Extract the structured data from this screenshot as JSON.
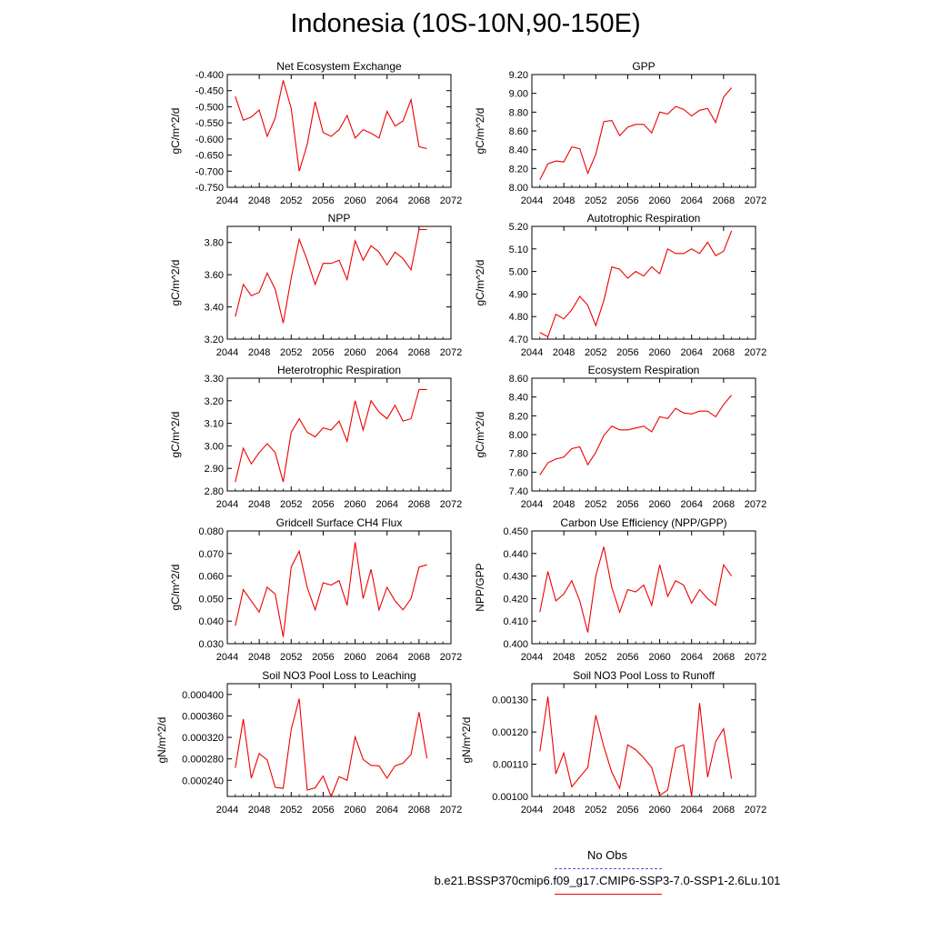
{
  "title": "Indonesia (10S-10N,90-150E)",
  "legend": {
    "obs_label": "No Obs",
    "obs_color": "#5555dd",
    "run_label": "b.e21.BSSP370cmip6.f09_g17.CMIP6-SSP3-7.0-SSP1-2.6Lu.101",
    "run_color": "#ee0000"
  },
  "chart_data": [
    {
      "type": "line",
      "title": "Net Ecosystem Exchange",
      "ylabel": "gC/m^2/d",
      "xlim": [
        2044,
        2072
      ],
      "ylim": [
        -0.75,
        -0.4
      ],
      "xticks": [
        "2044",
        "2048",
        "2052",
        "2056",
        "2060",
        "2064",
        "2068",
        "2072"
      ],
      "yticks": [
        "-0.750",
        "-0.700",
        "-0.650",
        "-0.600",
        "-0.550",
        "-0.500",
        "-0.450",
        "-0.400"
      ],
      "x": [
        2045,
        2046,
        2047,
        2048,
        2049,
        2050,
        2051,
        2052,
        2053,
        2054,
        2055,
        2056,
        2057,
        2058,
        2059,
        2060,
        2061,
        2062,
        2063,
        2064,
        2065,
        2066,
        2067,
        2068,
        2069
      ],
      "series": [
        {
          "values": [
            -0.468,
            -0.542,
            -0.532,
            -0.51,
            -0.592,
            -0.535,
            -0.418,
            -0.505,
            -0.7,
            -0.617,
            -0.484,
            -0.58,
            -0.592,
            -0.571,
            -0.527,
            -0.597,
            -0.571,
            -0.582,
            -0.597,
            -0.514,
            -0.56,
            -0.544,
            -0.478,
            -0.624,
            -0.63
          ]
        }
      ]
    },
    {
      "type": "line",
      "title": "GPP",
      "ylabel": "gC/m^2/d",
      "xlim": [
        2044,
        2072
      ],
      "ylim": [
        8.0,
        9.2
      ],
      "xticks": [
        "2044",
        "2048",
        "2052",
        "2056",
        "2060",
        "2064",
        "2068",
        "2072"
      ],
      "yticks": [
        "8.00",
        "8.20",
        "8.40",
        "8.60",
        "8.80",
        "9.00",
        "9.20"
      ],
      "x": [
        2045,
        2046,
        2047,
        2048,
        2049,
        2050,
        2051,
        2052,
        2053,
        2054,
        2055,
        2056,
        2057,
        2058,
        2059,
        2060,
        2061,
        2062,
        2063,
        2064,
        2065,
        2066,
        2067,
        2068,
        2069
      ],
      "series": [
        {
          "values": [
            8.08,
            8.25,
            8.28,
            8.27,
            8.43,
            8.41,
            8.15,
            8.35,
            8.7,
            8.71,
            8.55,
            8.64,
            8.67,
            8.67,
            8.58,
            8.8,
            8.78,
            8.86,
            8.83,
            8.76,
            8.82,
            8.84,
            8.69,
            8.96,
            9.06
          ]
        }
      ]
    },
    {
      "type": "line",
      "title": "NPP",
      "ylabel": "gC/m^2/d",
      "xlim": [
        2044,
        2072
      ],
      "ylim": [
        3.2,
        3.9
      ],
      "xticks": [
        "2044",
        "2048",
        "2052",
        "2056",
        "2060",
        "2064",
        "2068",
        "2072"
      ],
      "yticks": [
        "3.20",
        "3.40",
        "3.60",
        "3.80"
      ],
      "x": [
        2045,
        2046,
        2047,
        2048,
        2049,
        2050,
        2051,
        2052,
        2053,
        2054,
        2055,
        2056,
        2057,
        2058,
        2059,
        2060,
        2061,
        2062,
        2063,
        2064,
        2065,
        2066,
        2067,
        2068,
        2069
      ],
      "series": [
        {
          "values": [
            3.34,
            3.54,
            3.47,
            3.49,
            3.61,
            3.51,
            3.3,
            3.58,
            3.82,
            3.69,
            3.54,
            3.67,
            3.67,
            3.69,
            3.57,
            3.81,
            3.69,
            3.78,
            3.74,
            3.66,
            3.74,
            3.7,
            3.63,
            3.88,
            3.88
          ]
        }
      ]
    },
    {
      "type": "line",
      "title": "Autotrophic Respiration",
      "ylabel": "gC/m^2/d",
      "xlim": [
        2044,
        2072
      ],
      "ylim": [
        4.7,
        5.2
      ],
      "xticks": [
        "2044",
        "2048",
        "2052",
        "2056",
        "2060",
        "2064",
        "2068",
        "2072"
      ],
      "yticks": [
        "4.70",
        "4.80",
        "4.90",
        "5.00",
        "5.10",
        "5.20"
      ],
      "x": [
        2045,
        2046,
        2047,
        2048,
        2049,
        2050,
        2051,
        2052,
        2053,
        2054,
        2055,
        2056,
        2057,
        2058,
        2059,
        2060,
        2061,
        2062,
        2063,
        2064,
        2065,
        2066,
        2067,
        2068,
        2069
      ],
      "series": [
        {
          "values": [
            4.73,
            4.71,
            4.81,
            4.79,
            4.83,
            4.89,
            4.85,
            4.76,
            4.87,
            5.02,
            5.01,
            4.97,
            5.0,
            4.98,
            5.02,
            4.99,
            5.1,
            5.08,
            5.08,
            5.1,
            5.08,
            5.13,
            5.07,
            5.09,
            5.18
          ]
        }
      ]
    },
    {
      "type": "line",
      "title": "Heterotrophic Respiration",
      "ylabel": "gC/m^2/d",
      "xlim": [
        2044,
        2072
      ],
      "ylim": [
        2.8,
        3.3
      ],
      "xticks": [
        "2044",
        "2048",
        "2052",
        "2056",
        "2060",
        "2064",
        "2068",
        "2072"
      ],
      "yticks": [
        "2.80",
        "2.90",
        "3.00",
        "3.10",
        "3.20",
        "3.30"
      ],
      "x": [
        2045,
        2046,
        2047,
        2048,
        2049,
        2050,
        2051,
        2052,
        2053,
        2054,
        2055,
        2056,
        2057,
        2058,
        2059,
        2060,
        2061,
        2062,
        2063,
        2064,
        2065,
        2066,
        2067,
        2068,
        2069
      ],
      "series": [
        {
          "values": [
            2.84,
            2.99,
            2.92,
            2.97,
            3.01,
            2.97,
            2.84,
            3.06,
            3.12,
            3.06,
            3.04,
            3.08,
            3.07,
            3.11,
            3.02,
            3.2,
            3.07,
            3.2,
            3.15,
            3.12,
            3.18,
            3.11,
            3.12,
            3.25,
            3.25
          ]
        }
      ]
    },
    {
      "type": "line",
      "title": "Ecosystem Respiration",
      "ylabel": "gC/m^2/d",
      "xlim": [
        2044,
        2072
      ],
      "ylim": [
        7.4,
        8.6
      ],
      "xticks": [
        "2044",
        "2048",
        "2052",
        "2056",
        "2060",
        "2064",
        "2068",
        "2072"
      ],
      "yticks": [
        "7.40",
        "7.60",
        "7.80",
        "8.00",
        "8.20",
        "8.40",
        "8.60"
      ],
      "x": [
        2045,
        2046,
        2047,
        2048,
        2049,
        2050,
        2051,
        2052,
        2053,
        2054,
        2055,
        2056,
        2057,
        2058,
        2059,
        2060,
        2061,
        2062,
        2063,
        2064,
        2065,
        2066,
        2067,
        2068,
        2069
      ],
      "series": [
        {
          "values": [
            7.57,
            7.7,
            7.74,
            7.76,
            7.85,
            7.87,
            7.68,
            7.81,
            7.99,
            8.09,
            8.05,
            8.05,
            8.07,
            8.09,
            8.03,
            8.19,
            8.17,
            8.28,
            8.23,
            8.22,
            8.25,
            8.25,
            8.19,
            8.32,
            8.42
          ]
        }
      ]
    },
    {
      "type": "line",
      "title": "Gridcell Surface CH4 Flux",
      "ylabel": "gC/m^2/d",
      "xlim": [
        2044,
        2072
      ],
      "ylim": [
        0.03,
        0.08
      ],
      "xticks": [
        "2044",
        "2048",
        "2052",
        "2056",
        "2060",
        "2064",
        "2068",
        "2072"
      ],
      "yticks": [
        "0.030",
        "0.040",
        "0.050",
        "0.060",
        "0.070",
        "0.080"
      ],
      "x": [
        2045,
        2046,
        2047,
        2048,
        2049,
        2050,
        2051,
        2052,
        2053,
        2054,
        2055,
        2056,
        2057,
        2058,
        2059,
        2060,
        2061,
        2062,
        2063,
        2064,
        2065,
        2066,
        2067,
        2068,
        2069
      ],
      "series": [
        {
          "values": [
            0.038,
            0.054,
            0.049,
            0.044,
            0.055,
            0.052,
            0.033,
            0.064,
            0.071,
            0.055,
            0.045,
            0.057,
            0.056,
            0.058,
            0.047,
            0.075,
            0.05,
            0.063,
            0.045,
            0.055,
            0.049,
            0.045,
            0.05,
            0.064,
            0.065
          ]
        }
      ]
    },
    {
      "type": "line",
      "title": "Carbon Use Efficiency (NPP/GPP)",
      "ylabel": "NPP/GPP",
      "xlim": [
        2044,
        2072
      ],
      "ylim": [
        0.4,
        0.45
      ],
      "xticks": [
        "2044",
        "2048",
        "2052",
        "2056",
        "2060",
        "2064",
        "2068",
        "2072"
      ],
      "yticks": [
        "0.400",
        "0.410",
        "0.420",
        "0.430",
        "0.440",
        "0.450"
      ],
      "x": [
        2045,
        2046,
        2047,
        2048,
        2049,
        2050,
        2051,
        2052,
        2053,
        2054,
        2055,
        2056,
        2057,
        2058,
        2059,
        2060,
        2061,
        2062,
        2063,
        2064,
        2065,
        2066,
        2067,
        2068,
        2069
      ],
      "series": [
        {
          "values": [
            0.414,
            0.432,
            0.419,
            0.422,
            0.428,
            0.419,
            0.405,
            0.43,
            0.443,
            0.425,
            0.414,
            0.424,
            0.423,
            0.426,
            0.417,
            0.435,
            0.421,
            0.428,
            0.426,
            0.418,
            0.424,
            0.42,
            0.417,
            0.435,
            0.43
          ]
        }
      ]
    },
    {
      "type": "line",
      "title": "Soil NO3 Pool Loss to Leaching",
      "ylabel": "gN/m^2/d",
      "xlim": [
        2044,
        2072
      ],
      "ylim": [
        0.00021,
        0.00042
      ],
      "xticks": [
        "2044",
        "2048",
        "2052",
        "2056",
        "2060",
        "2064",
        "2068",
        "2072"
      ],
      "yticks": [
        "0.000240",
        "0.000280",
        "0.000320",
        "0.000360",
        "0.000400"
      ],
      "ytick_values": [
        0.00024,
        0.00028,
        0.00032,
        0.00036,
        0.0004
      ],
      "x": [
        2045,
        2046,
        2047,
        2048,
        2049,
        2050,
        2051,
        2052,
        2053,
        2054,
        2055,
        2056,
        2057,
        2058,
        2059,
        2060,
        2061,
        2062,
        2063,
        2064,
        2065,
        2066,
        2067,
        2068,
        2069
      ],
      "series": [
        {
          "values": [
            0.000263,
            0.000354,
            0.000244,
            0.00029,
            0.000278,
            0.000227,
            0.000225,
            0.000335,
            0.000392,
            0.000222,
            0.000226,
            0.000248,
            0.00021,
            0.000247,
            0.00024,
            0.000321,
            0.000279,
            0.000268,
            0.000267,
            0.000244,
            0.000267,
            0.000272,
            0.000288,
            0.000367,
            0.000281
          ]
        }
      ]
    },
    {
      "type": "line",
      "title": "Soil NO3 Pool Loss to Runoff",
      "ylabel": "gN/m^2/d",
      "xlim": [
        2044,
        2072
      ],
      "ylim": [
        0.001,
        0.00135
      ],
      "xticks": [
        "2044",
        "2048",
        "2052",
        "2056",
        "2060",
        "2064",
        "2068",
        "2072"
      ],
      "yticks": [
        "0.00100",
        "0.00110",
        "0.00120",
        "0.00130"
      ],
      "ytick_values": [
        0.001,
        0.0011,
        0.0012,
        0.0013
      ],
      "x": [
        2045,
        2046,
        2047,
        2048,
        2049,
        2050,
        2051,
        2052,
        2053,
        2054,
        2055,
        2056,
        2057,
        2058,
        2059,
        2060,
        2061,
        2062,
        2063,
        2064,
        2065,
        2066,
        2067,
        2068,
        2069
      ],
      "series": [
        {
          "values": [
            0.00114,
            0.00131,
            0.00107,
            0.001135,
            0.00103,
            0.00106,
            0.00109,
            0.001252,
            0.001155,
            0.001075,
            0.001025,
            0.00116,
            0.001145,
            0.00112,
            0.00109,
            0.001003,
            0.00102,
            0.00115,
            0.00116,
            0.001,
            0.00129,
            0.00106,
            0.00117,
            0.00121,
            0.001055
          ]
        }
      ]
    }
  ]
}
